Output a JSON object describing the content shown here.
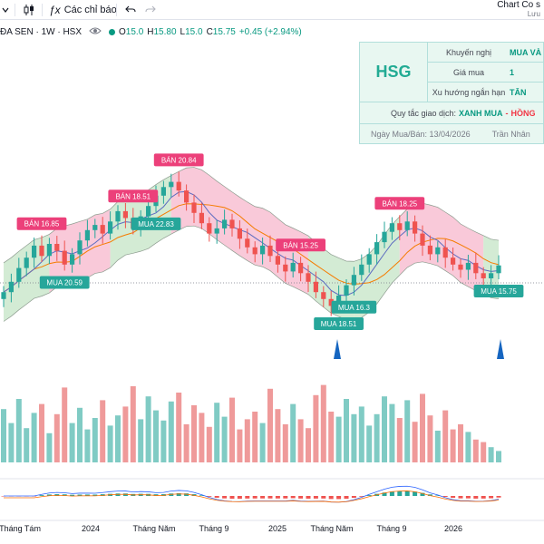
{
  "toolbar": {
    "indicators_label": "Các chỉ báo",
    "undo_icon": "undo-icon",
    "redo_icon": "redo-icon",
    "brand_title": "Chart Co s",
    "brand_sub": "Lưu"
  },
  "legend": {
    "symbol": "ĐA SEN · 1W · HSX",
    "o_label": "O",
    "o": "15.0",
    "h_label": "H",
    "h": "15.80",
    "l_label": "L",
    "l": "15.0",
    "c_label": "C",
    "c": "15.75",
    "change": "+0.45 (+2.94%)"
  },
  "info": {
    "ticker": "HSG",
    "rows": [
      {
        "key": "Khuyến nghị",
        "value": "MUA VÀ"
      },
      {
        "key": "Giá mua",
        "value": "1"
      },
      {
        "key": "Xu hướng ngắn hạn",
        "value": "TĂN"
      }
    ],
    "rule_label": "Quy tắc giao dịch:",
    "rule_buy": "XANH MUA",
    "rule_dash": "-",
    "rule_sell": "HỒNG",
    "date_text": "Ngày Mua/Bán: 13/04/2026",
    "author": "Trần Nhân"
  },
  "colors": {
    "up": "#26a69a",
    "down": "#ef5350",
    "buy_zone": "#c8e6c9",
    "sell_zone": "#f8bbd0"
  },
  "chart_data": {
    "type": "line",
    "x_labels": [
      "Tháng Tám",
      "2024",
      "Tháng Năm",
      "Tháng 9",
      "2025",
      "Tháng Năm",
      "Tháng 9",
      "2026"
    ],
    "signals": [
      {
        "label": "BÁN 16.85",
        "kind": "sell"
      },
      {
        "label": "MUA 20.59",
        "kind": "buy"
      },
      {
        "label": "BÁN 18.51",
        "kind": "sell"
      },
      {
        "label": "BÁN 20.84",
        "kind": "sell"
      },
      {
        "label": "MUA 22.83",
        "kind": "buy"
      },
      {
        "label": "BÁN 15.25",
        "kind": "sell"
      },
      {
        "label": "MUA 18.51",
        "kind": "buy"
      },
      {
        "label": "MUA 16.3",
        "kind": "buy"
      },
      {
        "label": "BÁN 18.25",
        "kind": "sell"
      },
      {
        "label": "MUA 15.75",
        "kind": "buy"
      }
    ],
    "price_close": [
      14.2,
      14.8,
      15.6,
      16.2,
      16.9,
      16.3,
      17.0,
      16.6,
      15.8,
      16.4,
      17.2,
      17.8,
      18.1,
      17.6,
      18.3,
      18.9,
      18.5,
      17.9,
      18.6,
      19.2,
      19.8,
      20.3,
      20.6,
      20.1,
      19.4,
      18.8,
      18.2,
      17.6,
      17.9,
      18.4,
      17.9,
      17.3,
      16.8,
      16.4,
      16.9,
      16.3,
      15.8,
      15.4,
      15.9,
      15.3,
      14.8,
      14.2,
      13.8,
      13.4,
      14.0,
      14.6,
      15.2,
      15.8,
      16.4,
      17.1,
      17.7,
      18.2,
      17.8,
      18.3,
      17.6,
      16.9,
      16.4,
      16.8,
      16.2,
      15.8,
      15.5,
      15.9,
      15.3,
      15.0,
      15.3,
      15.75
    ],
    "volume": [
      4.2,
      3.1,
      5.0,
      2.7,
      3.9,
      4.6,
      2.3,
      3.8,
      5.9,
      3.1,
      4.3,
      2.6,
      3.5,
      4.9,
      2.9,
      3.7,
      4.4,
      6.0,
      3.4,
      5.2,
      4.1,
      3.3,
      4.8,
      5.5,
      3.0,
      4.5,
      3.9,
      2.8,
      4.7,
      3.6,
      5.1,
      2.6,
      3.4,
      4.0,
      3.1,
      5.8,
      4.2,
      3.0,
      4.6,
      3.4,
      2.7,
      5.3,
      6.1,
      4.0,
      3.6,
      5.0,
      3.8,
      4.4,
      2.9,
      3.8,
      5.2,
      4.6,
      3.5,
      4.9,
      3.2,
      5.4,
      3.7,
      2.5,
      4.1,
      2.6,
      3.0,
      2.4,
      1.8,
      1.6,
      1.2,
      0.9
    ]
  }
}
